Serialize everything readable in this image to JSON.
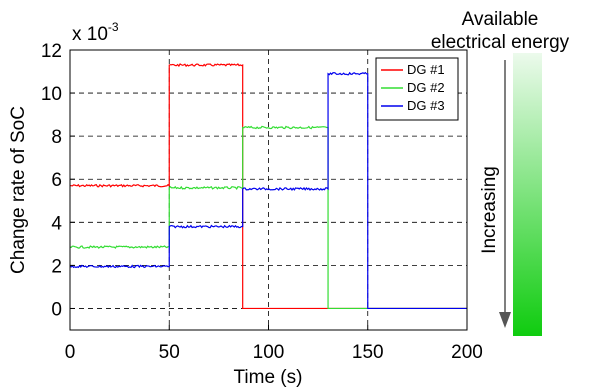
{
  "chart_data": {
    "type": "line",
    "title": "",
    "xlabel": "Time (s)",
    "ylabel": "Change rate of SoC",
    "yscale_label": "x 10",
    "yscale_exponent": "-3",
    "xlim": [
      0,
      200
    ],
    "ylim": [
      -1,
      12
    ],
    "xticks": [
      "0",
      "50",
      "100",
      "150",
      "200"
    ],
    "yticks": [
      "0",
      "2",
      "4",
      "6",
      "8",
      "10",
      "12"
    ],
    "grid": true,
    "legend": "top-right",
    "series": [
      {
        "name": "DG #1",
        "color": "#ff0000",
        "x": [
          0,
          50,
          50,
          87,
          87,
          200
        ],
        "y": [
          5.7,
          5.7,
          11.3,
          11.3,
          0,
          0
        ]
      },
      {
        "name": "DG #2",
        "color": "#33dd33",
        "x": [
          0,
          50,
          50,
          87,
          87,
          130,
          130,
          200
        ],
        "y": [
          2.85,
          2.85,
          5.6,
          5.6,
          8.4,
          8.4,
          0,
          0
        ]
      },
      {
        "name": "DG #3",
        "color": "#0000ee",
        "x": [
          0,
          50,
          50,
          87,
          87,
          130,
          130,
          150,
          150,
          200
        ],
        "y": [
          1.95,
          1.95,
          3.8,
          3.8,
          5.55,
          5.55,
          10.9,
          10.9,
          0,
          0
        ]
      }
    ]
  },
  "indicator": {
    "title_line1": "Available",
    "title_line2": "electrical energy",
    "label": "Increasing",
    "gradient_top": "#ecfaec",
    "gradient_bottom": "#0fcc0f"
  }
}
